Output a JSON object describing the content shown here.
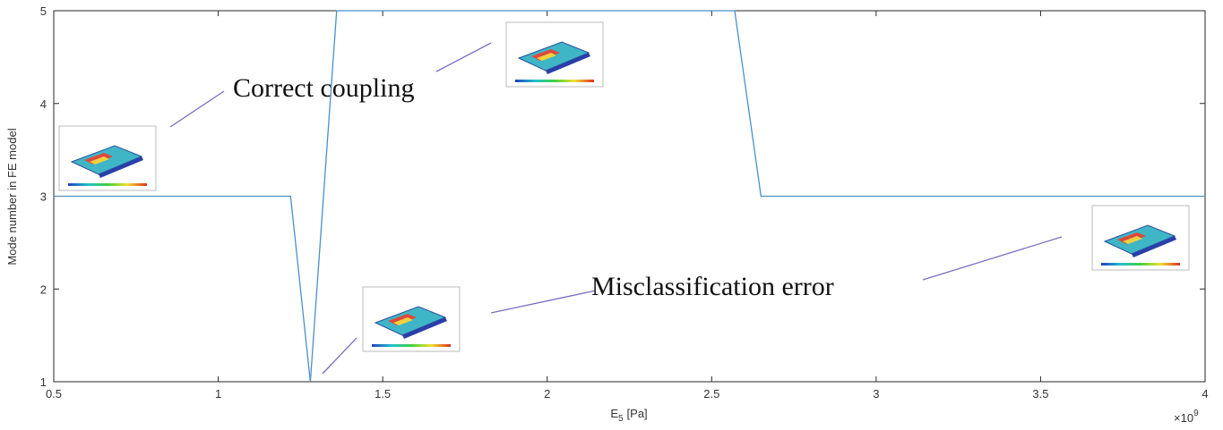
{
  "chart_data": {
    "type": "line",
    "y_label": "Mode number in FE model",
    "x_label": "E",
    "x_label_subscript": "5",
    "x_label_unit": "[Pa]",
    "x_multiplier": "×10",
    "x_multiplier_exponent": "9",
    "x": [
      0.5,
      1.22,
      1.28,
      1.36,
      2.57,
      2.65,
      4
    ],
    "values": [
      3,
      3,
      1,
      5,
      5,
      3,
      3
    ],
    "color": "#4a90c8",
    "xlim": [
      0.5,
      4
    ],
    "xticks": [
      0.5,
      1,
      1.5,
      2,
      2.5,
      3,
      3.5,
      4
    ],
    "ylim": [
      1,
      5
    ],
    "yticks": [
      1,
      2,
      3,
      4,
      5
    ],
    "grid": false,
    "annotations": [
      "Correct coupling",
      "Misclassification error"
    ]
  }
}
